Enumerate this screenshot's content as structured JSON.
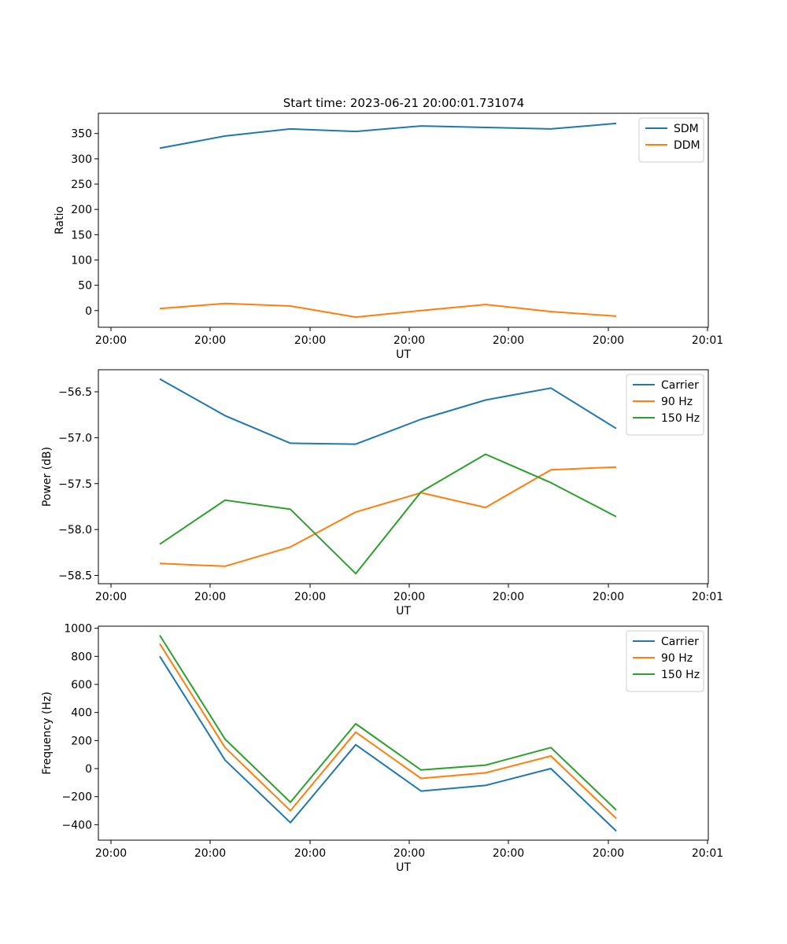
{
  "figure_title": "Start time: 2023-06-21 20:00:01.731074",
  "colors": {
    "blue": "#1f77b4",
    "orange": "#ff7f0e",
    "green": "#2ca02c"
  },
  "chart_data": [
    {
      "type": "line",
      "xlabel": "UT",
      "ylabel": "Ratio",
      "x_tick_labels": [
        "20:00",
        "20:00",
        "20:00",
        "20:00",
        "20:00",
        "20:00",
        "20:01"
      ],
      "yticks": [
        0,
        50,
        100,
        150,
        200,
        250,
        300,
        350
      ],
      "ylim": [
        -33,
        390
      ],
      "legend_position": "upper right",
      "series": [
        {
          "name": "SDM",
          "color": "#1f77b4",
          "values": [
            321,
            345,
            359,
            354,
            365,
            362,
            359,
            370
          ]
        },
        {
          "name": "DDM",
          "color": "#ff7f0e",
          "values": [
            4,
            14,
            9,
            -13,
            0,
            12,
            -2,
            -11
          ]
        }
      ]
    },
    {
      "type": "line",
      "xlabel": "UT",
      "ylabel": "Power (dB)",
      "x_tick_labels": [
        "20:00",
        "20:00",
        "20:00",
        "20:00",
        "20:00",
        "20:00",
        "20:01"
      ],
      "yticks": [
        -58.5,
        -58.0,
        -57.5,
        -57.0,
        -56.5
      ],
      "ytick_labels": [
        "−58.5",
        "−58.0",
        "−57.5",
        "−57.0",
        "−56.5"
      ],
      "ylim": [
        -58.59,
        -56.26
      ],
      "legend_position": "upper right",
      "series": [
        {
          "name": "Carrier",
          "color": "#1f77b4",
          "values": [
            -56.36,
            -56.76,
            -57.06,
            -57.07,
            -56.8,
            -56.59,
            -56.46,
            -56.9
          ]
        },
        {
          "name": "90 Hz",
          "color": "#ff7f0e",
          "values": [
            -58.37,
            -58.4,
            -58.19,
            -57.81,
            -57.6,
            -57.76,
            -57.35,
            -57.32
          ]
        },
        {
          "name": "150 Hz",
          "color": "#2ca02c",
          "values": [
            -58.16,
            -57.68,
            -57.78,
            -58.48,
            -57.59,
            -57.18,
            -57.49,
            -57.86
          ]
        }
      ]
    },
    {
      "type": "line",
      "xlabel": "UT",
      "ylabel": "Frequency (Hz)",
      "x_tick_labels": [
        "20:00",
        "20:00",
        "20:00",
        "20:00",
        "20:00",
        "20:00",
        "20:01"
      ],
      "yticks": [
        -400,
        -200,
        0,
        200,
        400,
        600,
        800,
        1000
      ],
      "ytick_labels": [
        "−400",
        "−200",
        "0",
        "200",
        "400",
        "600",
        "800",
        "1000"
      ],
      "ylim": [
        -510,
        1015
      ],
      "legend_position": "upper right",
      "series": [
        {
          "name": "Carrier",
          "color": "#1f77b4",
          "values": [
            800,
            60,
            -385,
            170,
            -160,
            -120,
            0,
            -445
          ]
        },
        {
          "name": "90 Hz",
          "color": "#ff7f0e",
          "values": [
            890,
            150,
            -300,
            260,
            -70,
            -30,
            90,
            -355
          ]
        },
        {
          "name": "150 Hz",
          "color": "#2ca02c",
          "values": [
            950,
            210,
            -240,
            320,
            -10,
            25,
            150,
            -295
          ]
        }
      ]
    }
  ]
}
